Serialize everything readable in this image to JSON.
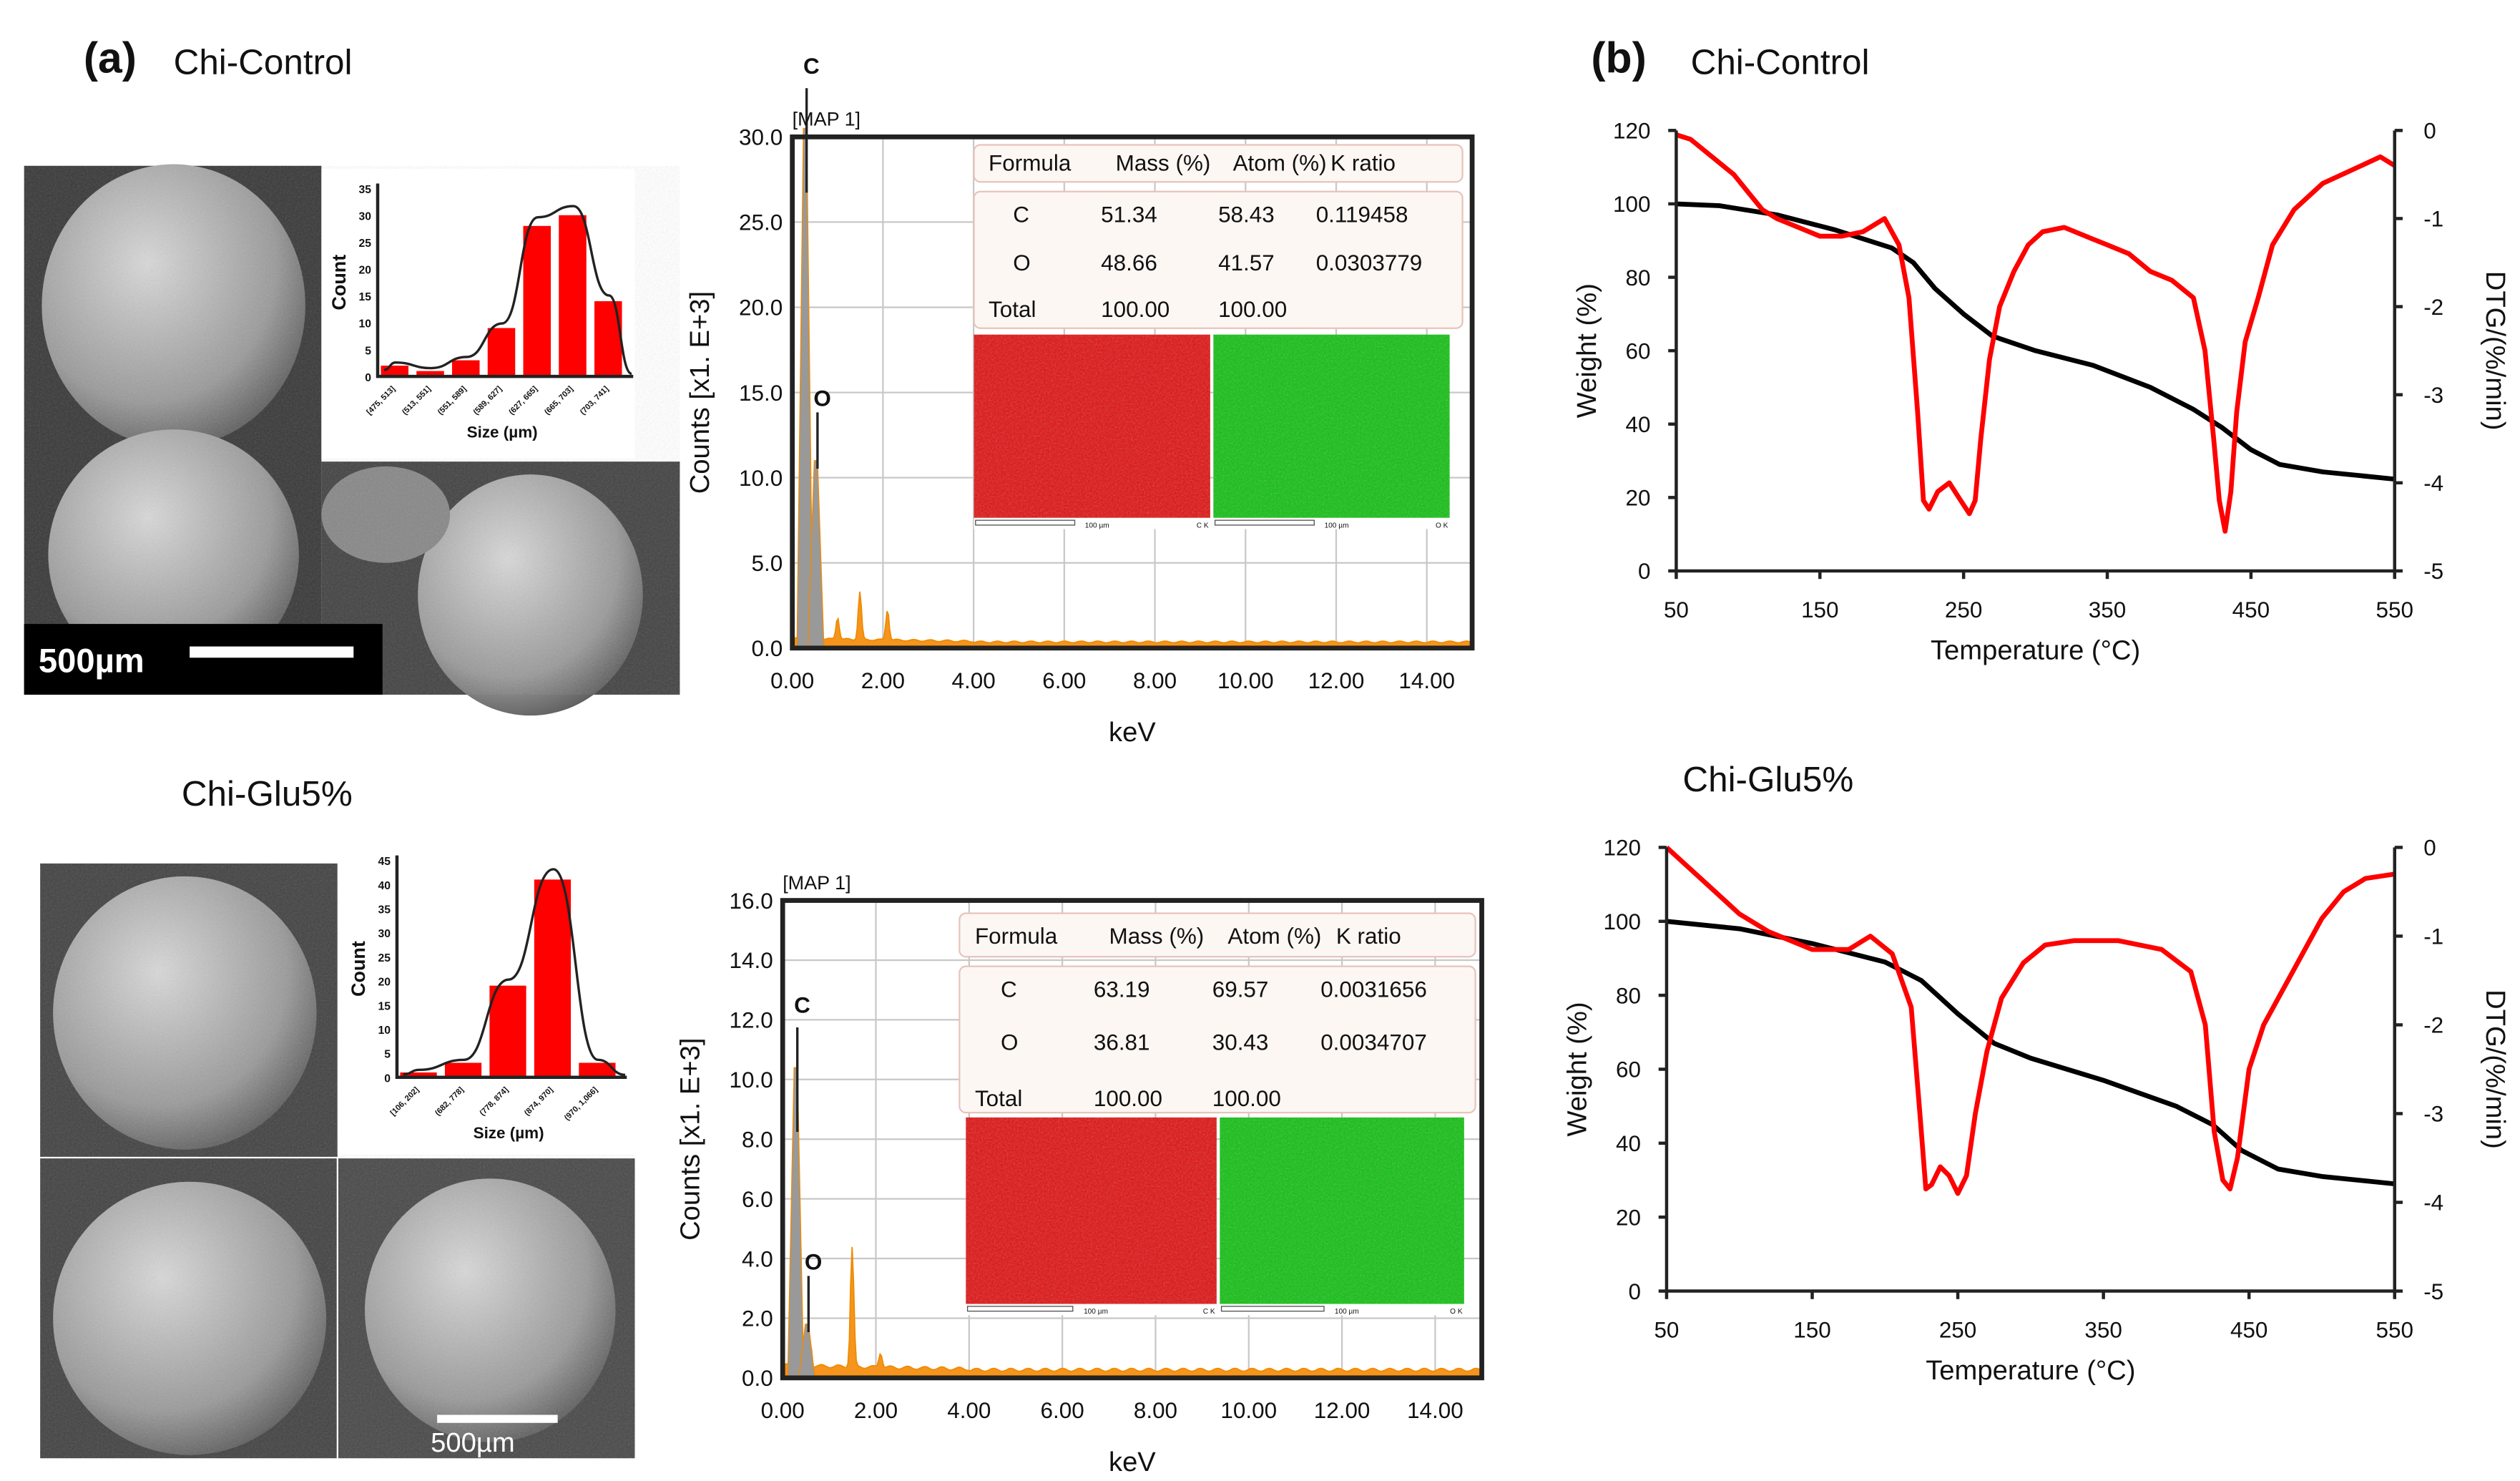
{
  "panel_labels": {
    "a": "(a)",
    "b": "(b)"
  },
  "titles": {
    "a_top": "Chi-Control",
    "a_bottom": "Chi-Glu5%",
    "b_top": "Chi-Control",
    "b_bottom": "Chi-Glu5%"
  },
  "sem": {
    "scale_bar_top": "500µm",
    "scale_bar_bottom": "500µm"
  },
  "chart_data": [
    {
      "id": "hist-control",
      "type": "bar",
      "categories": [
        "[475, 513]",
        "(513, 551]",
        "(551, 589]",
        "(589, 627]",
        "(627, 665]",
        "(665, 703]",
        "(703, 741]"
      ],
      "values": [
        2,
        1,
        3,
        9,
        28,
        30,
        14
      ],
      "ylabel": "Count",
      "xlabel": "Size (µm)",
      "ylim": [
        0,
        35
      ],
      "yticks": [
        0,
        5,
        10,
        15,
        20,
        25,
        30,
        35
      ],
      "fit_curve": true,
      "color": "#ff0000"
    },
    {
      "id": "hist-glu5",
      "type": "bar",
      "categories": [
        "[106, 202]",
        "(682, 778]",
        "(778, 874]",
        "(874, 970]",
        "(970, 1,066]"
      ],
      "values": [
        1,
        3,
        19,
        41,
        3
      ],
      "ylabel": "Count",
      "xlabel": "Size (µm)",
      "ylim": [
        0,
        45
      ],
      "yticks": [
        0,
        5,
        10,
        15,
        20,
        25,
        30,
        35,
        40,
        45
      ],
      "fit_curve": true,
      "color": "#ff0000"
    },
    {
      "id": "eds-control",
      "type": "area",
      "title": "[MAP 1]",
      "xlabel": "keV",
      "ylabel": "Counts [x1. E+3]",
      "xlim": [
        0,
        15
      ],
      "ylim": [
        0,
        30
      ],
      "xticks": [
        "0.00",
        "2.00",
        "4.00",
        "6.00",
        "8.00",
        "10.00",
        "12.00",
        "14.00"
      ],
      "yticks": [
        "0.0",
        "5.0",
        "10.0",
        "15.0",
        "20.0",
        "25.0",
        "30.0"
      ],
      "peaks": [
        {
          "element": "C",
          "kev": 0.28,
          "height": 30.5,
          "labeled": true
        },
        {
          "element": "O",
          "kev": 0.52,
          "height": 11.0,
          "labeled": true
        },
        {
          "element": "",
          "kev": 1.0,
          "height": 1.3,
          "labeled": false
        },
        {
          "element": "",
          "kev": 1.49,
          "height": 2.8,
          "labeled": false
        },
        {
          "element": "",
          "kev": 2.1,
          "height": 1.8,
          "labeled": false
        }
      ],
      "baseline": 0.4,
      "table": {
        "headers": [
          "Formula",
          "Mass (%)",
          "Atom (%)",
          "K ratio"
        ],
        "rows": [
          [
            "C",
            "51.34",
            "58.43",
            "0.119458"
          ],
          [
            "O",
            "48.66",
            "41.57",
            "0.0303779"
          ],
          [
            "Total",
            "100.00",
            "100.00",
            ""
          ]
        ]
      },
      "maps": [
        {
          "scale": "100 µm",
          "label": "C K",
          "color": "#e01010"
        },
        {
          "scale": "100 µm",
          "label": "O K",
          "color": "#10c010"
        }
      ]
    },
    {
      "id": "eds-glu5",
      "type": "area",
      "title": "[MAP 1]",
      "xlabel": "keV",
      "ylabel": "Counts [x1. E+3]",
      "xlim": [
        0,
        15
      ],
      "ylim": [
        0,
        16
      ],
      "xticks": [
        "0.00",
        "2.00",
        "4.00",
        "6.00",
        "8.00",
        "10.00",
        "12.00",
        "14.00"
      ],
      "yticks": [
        "0.0",
        "2.0",
        "4.0",
        "6.0",
        "8.0",
        "10.0",
        "12.0",
        "14.0",
        "16.0"
      ],
      "peaks": [
        {
          "element": "C",
          "kev": 0.28,
          "height": 10.4,
          "labeled": true
        },
        {
          "element": "O",
          "kev": 0.52,
          "height": 1.8,
          "labeled": true
        },
        {
          "element": "",
          "kev": 1.49,
          "height": 4.0,
          "labeled": false
        },
        {
          "element": "",
          "kev": 2.1,
          "height": 0.5,
          "labeled": false
        }
      ],
      "baseline": 0.3,
      "table": {
        "headers": [
          "Formula",
          "Mass (%)",
          "Atom (%)",
          "K ratio"
        ],
        "rows": [
          [
            "C",
            "63.19",
            "69.57",
            "0.0031656"
          ],
          [
            "O",
            "36.81",
            "30.43",
            "0.0034707"
          ],
          [
            "Total",
            "100.00",
            "100.00",
            ""
          ]
        ]
      },
      "maps": [
        {
          "scale": "100 µm",
          "label": "C K",
          "color": "#e01010"
        },
        {
          "scale": "100 µm",
          "label": "O K",
          "color": "#10c010"
        }
      ]
    },
    {
      "id": "tga-control",
      "type": "line",
      "xlabel": "Temperature (°C)",
      "ylabel": "Weight (%)",
      "y2label": "DTG/(%/min)",
      "xlim": [
        50,
        550
      ],
      "ylim": [
        0,
        120
      ],
      "y2lim": [
        -5,
        0
      ],
      "xticks": [
        50,
        150,
        250,
        350,
        450,
        550
      ],
      "yticks": [
        0,
        20,
        40,
        60,
        80,
        100,
        120
      ],
      "y2ticks": [
        0,
        -1,
        -2,
        -3,
        -4,
        -5
      ],
      "series": [
        {
          "name": "Weight",
          "axis": "left",
          "color": "#000000",
          "x": [
            50,
            80,
            120,
            160,
            200,
            215,
            230,
            250,
            270,
            300,
            340,
            380,
            410,
            430,
            450,
            470,
            500,
            550
          ],
          "y": [
            100,
            99.5,
            97,
            93,
            88,
            84,
            77,
            70,
            64,
            60,
            56,
            50,
            44,
            39,
            33,
            29,
            27,
            25
          ]
        },
        {
          "name": "DTG",
          "axis": "right",
          "color": "#ff0000",
          "x": [
            50,
            60,
            75,
            90,
            100,
            110,
            120,
            135,
            150,
            165,
            180,
            195,
            205,
            212,
            218,
            222,
            226,
            232,
            240,
            248,
            254,
            258,
            262,
            268,
            275,
            285,
            295,
            305,
            320,
            335,
            350,
            365,
            380,
            395,
            410,
            418,
            424,
            428,
            432,
            436,
            440,
            446,
            455,
            465,
            480,
            500,
            520,
            540,
            550
          ],
          "y": [
            -0.05,
            -0.1,
            -0.3,
            -0.5,
            -0.7,
            -0.9,
            -1.0,
            -1.1,
            -1.2,
            -1.2,
            -1.15,
            -1.0,
            -1.3,
            -1.9,
            -3.2,
            -4.2,
            -4.3,
            -4.1,
            -4.0,
            -4.2,
            -4.35,
            -4.2,
            -3.5,
            -2.6,
            -2.0,
            -1.6,
            -1.3,
            -1.15,
            -1.1,
            -1.2,
            -1.3,
            -1.4,
            -1.6,
            -1.7,
            -1.9,
            -2.5,
            -3.5,
            -4.2,
            -4.55,
            -4.1,
            -3.2,
            -2.4,
            -1.9,
            -1.3,
            -0.9,
            -0.6,
            -0.45,
            -0.3,
            -0.4
          ]
        }
      ]
    },
    {
      "id": "tga-glu5",
      "type": "line",
      "xlabel": "Temperature (°C)",
      "ylabel": "Weight (%)",
      "y2label": "DTG/(%/min)",
      "xlim": [
        50,
        550
      ],
      "ylim": [
        0,
        120
      ],
      "y2lim": [
        -5,
        0
      ],
      "xticks": [
        50,
        150,
        250,
        350,
        450,
        550
      ],
      "yticks": [
        0,
        20,
        40,
        60,
        80,
        100,
        120
      ],
      "y2ticks": [
        0,
        -1,
        -2,
        -3,
        -4,
        -5
      ],
      "series": [
        {
          "name": "Weight",
          "axis": "left",
          "color": "#000000",
          "x": [
            50,
            100,
            150,
            200,
            225,
            250,
            275,
            300,
            350,
            400,
            425,
            445,
            470,
            500,
            550
          ],
          "y": [
            100,
            98,
            94,
            89,
            84,
            75,
            67,
            63,
            57,
            50,
            45,
            38,
            33,
            31,
            29
          ]
        },
        {
          "name": "DTG",
          "axis": "right",
          "color": "#ff0000",
          "x": [
            50,
            60,
            80,
            100,
            120,
            150,
            175,
            190,
            205,
            218,
            224,
            228,
            232,
            238,
            244,
            250,
            256,
            262,
            270,
            280,
            295,
            310,
            330,
            360,
            390,
            410,
            420,
            426,
            432,
            437,
            442,
            450,
            460,
            480,
            500,
            515,
            530,
            550
          ],
          "y": [
            0,
            -0.15,
            -0.45,
            -0.75,
            -0.95,
            -1.15,
            -1.15,
            -1.0,
            -1.2,
            -1.8,
            -3.0,
            -3.85,
            -3.8,
            -3.6,
            -3.7,
            -3.9,
            -3.7,
            -3.0,
            -2.3,
            -1.7,
            -1.3,
            -1.1,
            -1.05,
            -1.05,
            -1.15,
            -1.4,
            -2.0,
            -3.2,
            -3.75,
            -3.85,
            -3.5,
            -2.5,
            -2.0,
            -1.4,
            -0.8,
            -0.5,
            -0.35,
            -0.3
          ]
        }
      ]
    }
  ]
}
